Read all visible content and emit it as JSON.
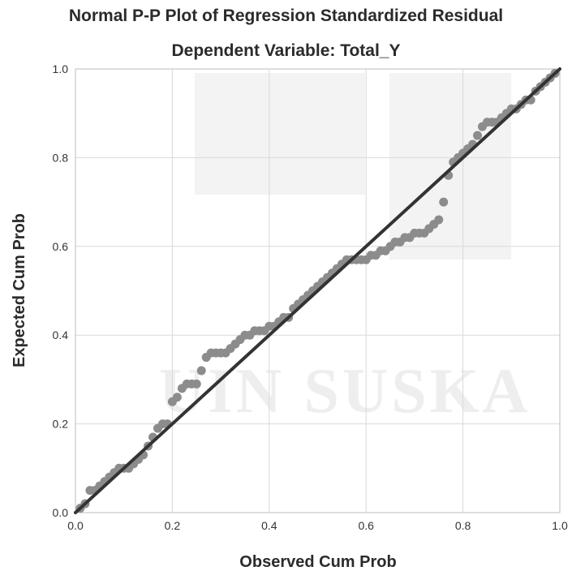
{
  "watermark_text": "UIN SUSKA",
  "chart_data": {
    "type": "scatter",
    "title": "Normal P-P Plot of Regression Standardized Residual",
    "subtitle": "Dependent Variable: Total_Y",
    "xlabel": "Observed Cum Prob",
    "ylabel": "Expected Cum Prob",
    "xlim": [
      0,
      1
    ],
    "ylim": [
      0,
      1
    ],
    "xticks": [
      "0.0",
      "0.2",
      "0.4",
      "0.6",
      "0.8",
      "1.0"
    ],
    "yticks": [
      "0.0",
      "0.2",
      "0.4",
      "0.6",
      "0.8",
      "1.0"
    ],
    "grid": true,
    "reference_line": [
      [
        0,
        0
      ],
      [
        1,
        1
      ]
    ],
    "colors": {
      "points": "#8c8c8c",
      "line": "#333333",
      "grid": "#d9d9d9"
    },
    "points": [
      [
        0.01,
        0.01
      ],
      [
        0.02,
        0.02
      ],
      [
        0.03,
        0.05
      ],
      [
        0.04,
        0.05
      ],
      [
        0.05,
        0.06
      ],
      [
        0.06,
        0.07
      ],
      [
        0.07,
        0.08
      ],
      [
        0.08,
        0.09
      ],
      [
        0.09,
        0.1
      ],
      [
        0.1,
        0.1
      ],
      [
        0.11,
        0.1
      ],
      [
        0.12,
        0.11
      ],
      [
        0.13,
        0.12
      ],
      [
        0.14,
        0.13
      ],
      [
        0.15,
        0.15
      ],
      [
        0.16,
        0.17
      ],
      [
        0.17,
        0.19
      ],
      [
        0.18,
        0.2
      ],
      [
        0.19,
        0.2
      ],
      [
        0.2,
        0.25
      ],
      [
        0.21,
        0.26
      ],
      [
        0.22,
        0.28
      ],
      [
        0.23,
        0.29
      ],
      [
        0.24,
        0.29
      ],
      [
        0.25,
        0.29
      ],
      [
        0.26,
        0.32
      ],
      [
        0.27,
        0.35
      ],
      [
        0.28,
        0.36
      ],
      [
        0.29,
        0.36
      ],
      [
        0.3,
        0.36
      ],
      [
        0.31,
        0.36
      ],
      [
        0.32,
        0.37
      ],
      [
        0.33,
        0.38
      ],
      [
        0.34,
        0.39
      ],
      [
        0.35,
        0.4
      ],
      [
        0.36,
        0.4
      ],
      [
        0.37,
        0.41
      ],
      [
        0.38,
        0.41
      ],
      [
        0.39,
        0.41
      ],
      [
        0.4,
        0.42
      ],
      [
        0.41,
        0.42
      ],
      [
        0.42,
        0.43
      ],
      [
        0.43,
        0.44
      ],
      [
        0.44,
        0.44
      ],
      [
        0.45,
        0.46
      ],
      [
        0.46,
        0.47
      ],
      [
        0.47,
        0.48
      ],
      [
        0.48,
        0.49
      ],
      [
        0.49,
        0.5
      ],
      [
        0.5,
        0.51
      ],
      [
        0.51,
        0.52
      ],
      [
        0.52,
        0.53
      ],
      [
        0.53,
        0.54
      ],
      [
        0.54,
        0.55
      ],
      [
        0.55,
        0.56
      ],
      [
        0.56,
        0.57
      ],
      [
        0.57,
        0.57
      ],
      [
        0.58,
        0.57
      ],
      [
        0.59,
        0.57
      ],
      [
        0.6,
        0.57
      ],
      [
        0.61,
        0.58
      ],
      [
        0.62,
        0.58
      ],
      [
        0.63,
        0.59
      ],
      [
        0.64,
        0.59
      ],
      [
        0.65,
        0.6
      ],
      [
        0.66,
        0.61
      ],
      [
        0.67,
        0.61
      ],
      [
        0.68,
        0.62
      ],
      [
        0.69,
        0.62
      ],
      [
        0.7,
        0.63
      ],
      [
        0.71,
        0.63
      ],
      [
        0.72,
        0.63
      ],
      [
        0.73,
        0.64
      ],
      [
        0.74,
        0.65
      ],
      [
        0.75,
        0.66
      ],
      [
        0.76,
        0.7
      ],
      [
        0.77,
        0.76
      ],
      [
        0.78,
        0.79
      ],
      [
        0.79,
        0.8
      ],
      [
        0.8,
        0.81
      ],
      [
        0.81,
        0.82
      ],
      [
        0.82,
        0.83
      ],
      [
        0.83,
        0.85
      ],
      [
        0.84,
        0.87
      ],
      [
        0.85,
        0.88
      ],
      [
        0.86,
        0.88
      ],
      [
        0.87,
        0.88
      ],
      [
        0.88,
        0.89
      ],
      [
        0.89,
        0.9
      ],
      [
        0.9,
        0.91
      ],
      [
        0.91,
        0.91
      ],
      [
        0.92,
        0.92
      ],
      [
        0.93,
        0.93
      ],
      [
        0.94,
        0.93
      ],
      [
        0.95,
        0.95
      ],
      [
        0.96,
        0.96
      ],
      [
        0.97,
        0.97
      ],
      [
        0.98,
        0.98
      ],
      [
        0.99,
        0.99
      ]
    ]
  }
}
